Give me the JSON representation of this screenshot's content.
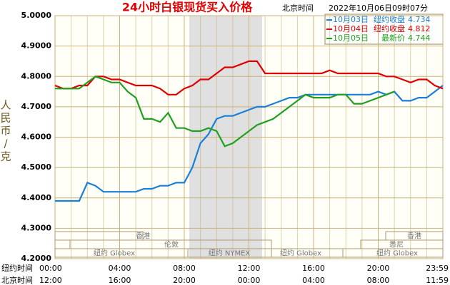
{
  "chart_data": {
    "type": "line",
    "title": "24小时白银现货买入价格",
    "time_label": "北京时间",
    "timestamp": "2022年10月06日09时07分",
    "y_label": "人民币/克",
    "ylim": [
      4.2,
      5.0
    ],
    "yticks": [
      {
        "value": 4.2,
        "label": "4.2000"
      },
      {
        "value": 4.3,
        "label": "4.3000"
      },
      {
        "value": 4.4,
        "label": "4.4000"
      },
      {
        "value": 4.5,
        "label": "4.5000"
      },
      {
        "value": 4.6,
        "label": "4.6000"
      },
      {
        "value": 4.7,
        "label": "4.7000"
      },
      {
        "value": 4.8,
        "label": "4.8000"
      },
      {
        "value": 4.9,
        "label": "4.9000"
      },
      {
        "value": 5.0,
        "label": "5.0000"
      }
    ],
    "x_row_labels": [
      "纽约时间",
      "北京时间"
    ],
    "x_labels_ny": [
      "00:00",
      "04:00",
      "08:00",
      "12:00",
      "16:00",
      "20:00",
      "23:59"
    ],
    "x_labels_bj": [
      "12:00",
      "16:00",
      "20:00",
      "00:00",
      "04:00",
      "08:00",
      "11:59"
    ],
    "grid": true,
    "sessions": [
      "香港",
      "香港",
      "伦敦",
      "悉尼",
      "纽约 Globex",
      "纽约 NYMEX",
      "纽约 Globex",
      "纽约 Globex"
    ],
    "series": [
      {
        "name": "10月03日",
        "close_label": "纽约收盘",
        "last": 4.734,
        "color": "#1a7fd8",
        "values": [
          4.39,
          4.39,
          4.39,
          4.39,
          4.45,
          4.44,
          4.42,
          4.42,
          4.42,
          4.42,
          4.42,
          4.43,
          4.43,
          4.44,
          4.44,
          4.45,
          4.45,
          4.5,
          4.58,
          4.61,
          4.66,
          4.67,
          4.67,
          4.68,
          4.69,
          4.7,
          4.7,
          4.71,
          4.72,
          4.73,
          4.73,
          4.74,
          4.74,
          4.74,
          4.74,
          4.74,
          4.74,
          4.74,
          4.74,
          4.74,
          4.75,
          4.74,
          4.75,
          4.72,
          4.72,
          4.73,
          4.73,
          4.75,
          4.77
        ]
      },
      {
        "name": "10月04日",
        "close_label": "纽约收盘",
        "last": 4.812,
        "color": "#e00000",
        "values": [
          4.77,
          4.76,
          4.76,
          4.77,
          4.77,
          4.8,
          4.8,
          4.79,
          4.79,
          4.78,
          4.77,
          4.77,
          4.77,
          4.76,
          4.74,
          4.74,
          4.76,
          4.77,
          4.79,
          4.79,
          4.81,
          4.83,
          4.83,
          4.84,
          4.85,
          4.85,
          4.81,
          4.81,
          4.81,
          4.81,
          4.81,
          4.81,
          4.81,
          4.81,
          4.82,
          4.81,
          4.81,
          4.81,
          4.81,
          4.81,
          4.81,
          4.8,
          4.8,
          4.79,
          4.78,
          4.79,
          4.79,
          4.77,
          4.76
        ]
      },
      {
        "name": "10月05日",
        "close_label": "最新价",
        "last": 4.744,
        "color": "#1fa01f",
        "values": [
          4.76,
          4.76,
          4.76,
          4.76,
          4.78,
          4.8,
          4.79,
          4.78,
          4.78,
          4.75,
          4.73,
          4.66,
          4.66,
          4.65,
          4.68,
          4.63,
          4.63,
          4.62,
          4.62,
          4.63,
          4.62,
          4.57,
          4.58,
          4.6,
          4.62,
          4.64,
          4.65,
          4.66,
          4.68,
          4.7,
          4.72,
          4.74,
          4.73,
          4.73,
          4.73,
          4.74,
          4.74,
          4.71,
          4.71,
          4.72,
          4.73,
          4.74,
          4.75,
          null,
          null,
          null,
          null,
          null,
          null
        ]
      }
    ]
  }
}
